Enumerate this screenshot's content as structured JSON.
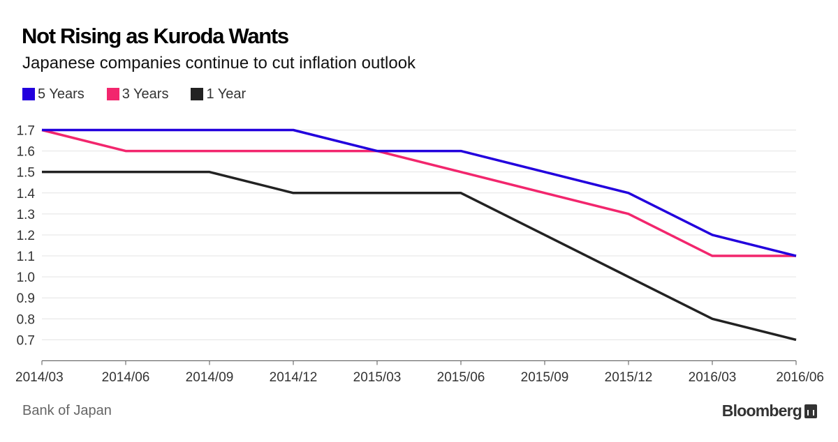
{
  "chart_data": {
    "type": "line",
    "title": "Not Rising as Kuroda Wants",
    "subtitle": "Japanese companies continue to cut inflation outlook",
    "categories": [
      "2014/03",
      "2014/06",
      "2014/09",
      "2014/12",
      "2015/03",
      "2015/06",
      "2015/09",
      "2015/12",
      "2016/03",
      "2016/06"
    ],
    "series": [
      {
        "name": "5 Years",
        "color": "#2200dd",
        "values": [
          1.7,
          1.7,
          1.7,
          1.7,
          1.6,
          1.6,
          1.5,
          1.4,
          1.2,
          1.1
        ]
      },
      {
        "name": "3 Years",
        "color": "#f2266d",
        "values": [
          1.7,
          1.6,
          1.6,
          1.6,
          1.6,
          1.5,
          1.4,
          1.3,
          1.1,
          1.1
        ]
      },
      {
        "name": "1 Year",
        "color": "#222222",
        "values": [
          1.5,
          1.5,
          1.5,
          1.4,
          1.4,
          1.4,
          1.2,
          1.0,
          0.8,
          0.7
        ]
      }
    ],
    "yticks": [
      "1.7",
      "1.6",
      "1.5",
      "1.4",
      "1.3",
      "1.2",
      "1.1",
      "1.0",
      "0.9",
      "0.8",
      "0.7"
    ],
    "ylim": [
      0.6,
      1.7
    ],
    "grid": true,
    "legend": "top-left"
  },
  "source": "Bank of Japan",
  "brand": "Bloomberg"
}
